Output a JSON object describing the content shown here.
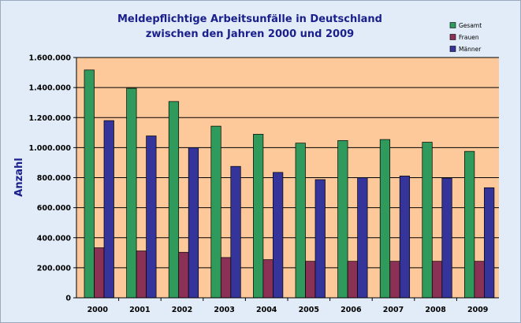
{
  "chart_data": {
    "type": "bar",
    "title_lines": [
      "Meldepflichtige Arbeitsunfälle in Deutschland",
      "zwischen den Jahren 2000 und 2009"
    ],
    "xlabel": "",
    "ylabel": "Anzahl",
    "ylim": [
      0,
      1600000
    ],
    "yticks": [
      0,
      200000,
      400000,
      600000,
      800000,
      1000000,
      1200000,
      1400000,
      1600000
    ],
    "ytick_labels": [
      "0",
      "200.000",
      "400.000",
      "600.000",
      "800.000",
      "1.000.000",
      "1.200.000",
      "1.400.000",
      "1.600.000"
    ],
    "grid": true,
    "legend_position": "top-right",
    "categories": [
      "2000",
      "2001",
      "2002",
      "2003",
      "2004",
      "2005",
      "2006",
      "2007",
      "2008",
      "2009"
    ],
    "series": [
      {
        "name": "Gesamt",
        "color": "#2f9a5b",
        "values": [
          1517000,
          1395000,
          1307000,
          1143000,
          1089000,
          1030000,
          1047000,
          1054000,
          1036000,
          975000
        ]
      },
      {
        "name": "Frauen",
        "color": "#8b3156",
        "values": [
          333000,
          312000,
          303000,
          268000,
          254000,
          243000,
          243000,
          243000,
          243000,
          243000
        ]
      },
      {
        "name": "Männer",
        "color": "#35349b",
        "values": [
          1180000,
          1078000,
          1000000,
          875000,
          835000,
          787000,
          800000,
          811000,
          797000,
          733000
        ]
      }
    ],
    "plot_background": "#fdc99a"
  }
}
